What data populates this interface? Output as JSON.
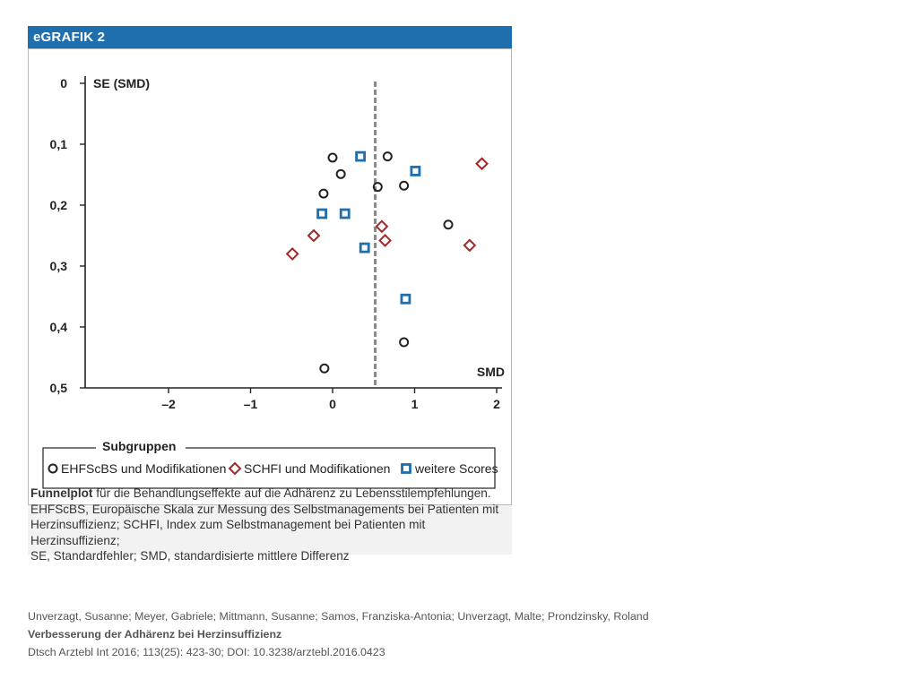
{
  "figure": {
    "header": "eGRAFIK 2",
    "caption_lead": "Funnelplot",
    "caption_lines": [
      " für die Behandlungseffekte auf die Adhärenz zu Lebensstilempfehlungen.",
      "EHFScBS, Europäische Skala zur Messung des Selbstmanagements bei Patienten mit",
      "Herzinsuffizienz; SCHFI, Index zum Selbstmanagement bei Patienten mit Herzinsuffizienz;",
      "SE, Standardfehler; SMD, standardisierte mittlere Differenz"
    ]
  },
  "citation": {
    "authors": "Unverzagt, Susanne; Meyer, Gabriele; Mittmann, Susanne; Samos, Franziska-Antonia; Unverzagt, Malte; Prondzinsky, Roland",
    "title": "Verbesserung der Adhärenz bei Herzinsuffizienz",
    "journal": "Dtsch Arztebl Int 2016; 113(25): 423-30; DOI: 10.3238/arztebl.2016.0423"
  },
  "chart_data": {
    "type": "scatter",
    "title": "",
    "xlabel": "SMD",
    "ylabel": "SE (SMD)",
    "xlim": [
      -3,
      2
    ],
    "ylim": [
      0,
      0.5
    ],
    "y_inverted": true,
    "x_ticks": [
      -2,
      -1,
      0,
      1,
      2
    ],
    "x_tick_labels": [
      "–2",
      "–1",
      "0",
      "1",
      "2"
    ],
    "y_ticks": [
      0,
      0.1,
      0.2,
      0.3,
      0.4,
      0.5
    ],
    "y_tick_labels": [
      "0",
      "0,1",
      "0,2",
      "0,3",
      "0,4",
      "0,5"
    ],
    "reference_line_x": 0.52,
    "legend_title": "Subgruppen",
    "legend_position": "bottom",
    "series": [
      {
        "name": "EHFScBS und Modifikationen",
        "marker": "circle",
        "color": "#222222",
        "points": [
          {
            "x": 0.0,
            "y": 0.122
          },
          {
            "x": 0.67,
            "y": 0.12
          },
          {
            "x": 0.1,
            "y": 0.149
          },
          {
            "x": 0.55,
            "y": 0.17
          },
          {
            "x": 0.87,
            "y": 0.168
          },
          {
            "x": -0.11,
            "y": 0.181
          },
          {
            "x": 1.41,
            "y": 0.232
          },
          {
            "x": 0.87,
            "y": 0.425
          },
          {
            "x": -0.1,
            "y": 0.468
          }
        ]
      },
      {
        "name": "SCHFI und Modifikationen",
        "marker": "diamond",
        "color": "#9e2a2b",
        "points": [
          {
            "x": 1.82,
            "y": 0.132
          },
          {
            "x": 0.6,
            "y": 0.235
          },
          {
            "x": -0.23,
            "y": 0.25
          },
          {
            "x": 0.64,
            "y": 0.258
          },
          {
            "x": 1.67,
            "y": 0.266
          },
          {
            "x": -0.49,
            "y": 0.28
          }
        ]
      },
      {
        "name": "weitere Scores",
        "marker": "square",
        "color": "#1f6ead",
        "points": [
          {
            "x": 0.34,
            "y": 0.12
          },
          {
            "x": 1.01,
            "y": 0.144
          },
          {
            "x": -0.13,
            "y": 0.214
          },
          {
            "x": 0.15,
            "y": 0.214
          },
          {
            "x": 0.39,
            "y": 0.27
          },
          {
            "x": 0.89,
            "y": 0.354
          }
        ]
      }
    ]
  }
}
